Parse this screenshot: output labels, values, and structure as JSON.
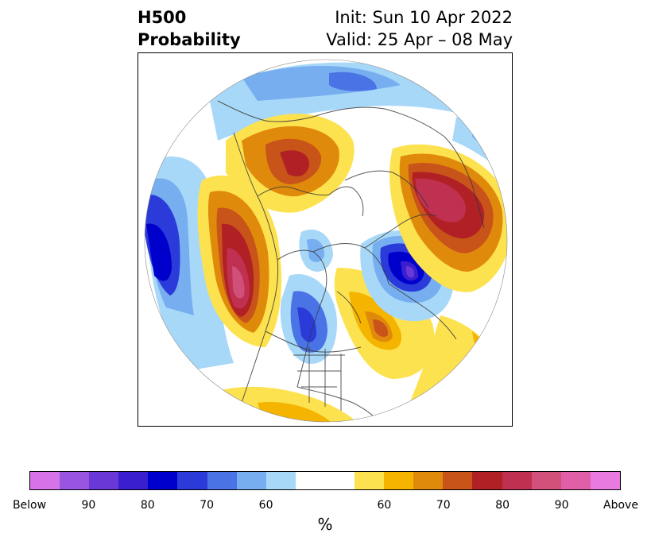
{
  "title": {
    "line1_left": "H500",
    "line2_left": "Probability",
    "line1_right": "Init: Sun 10 Apr 2022",
    "line2_right": "Valid: 25 Apr – 08 May"
  },
  "colorbar": {
    "colors": [
      "#d673e8",
      "#9a55e0",
      "#6b38d8",
      "#3a1fcf",
      "#0000cc",
      "#2a3bd9",
      "#4a73e6",
      "#76aef0",
      "#a8d8f8",
      "#ffffff",
      "#ffffff",
      "#fde24f",
      "#f4b400",
      "#e08a0c",
      "#c8541a",
      "#b02024",
      "#c03050",
      "#d0507a",
      "#e060a8",
      "#e87ae0"
    ],
    "tick_labels": [
      "Below",
      "90",
      "80",
      "70",
      "60",
      "60",
      "70",
      "80",
      "90",
      "Above"
    ],
    "unit_label": "%"
  },
  "map": {
    "projection": "north-polar-stereographic",
    "anomaly_colors": {
      "above_60": "#fde24f",
      "above_70": "#e08a0c",
      "above_80": "#b02024",
      "above_90": "#d0507a",
      "below_60": "#a8d8f8",
      "below_70": "#4a73e6",
      "below_80": "#0000cc",
      "below_90": "#6b38d8"
    }
  }
}
